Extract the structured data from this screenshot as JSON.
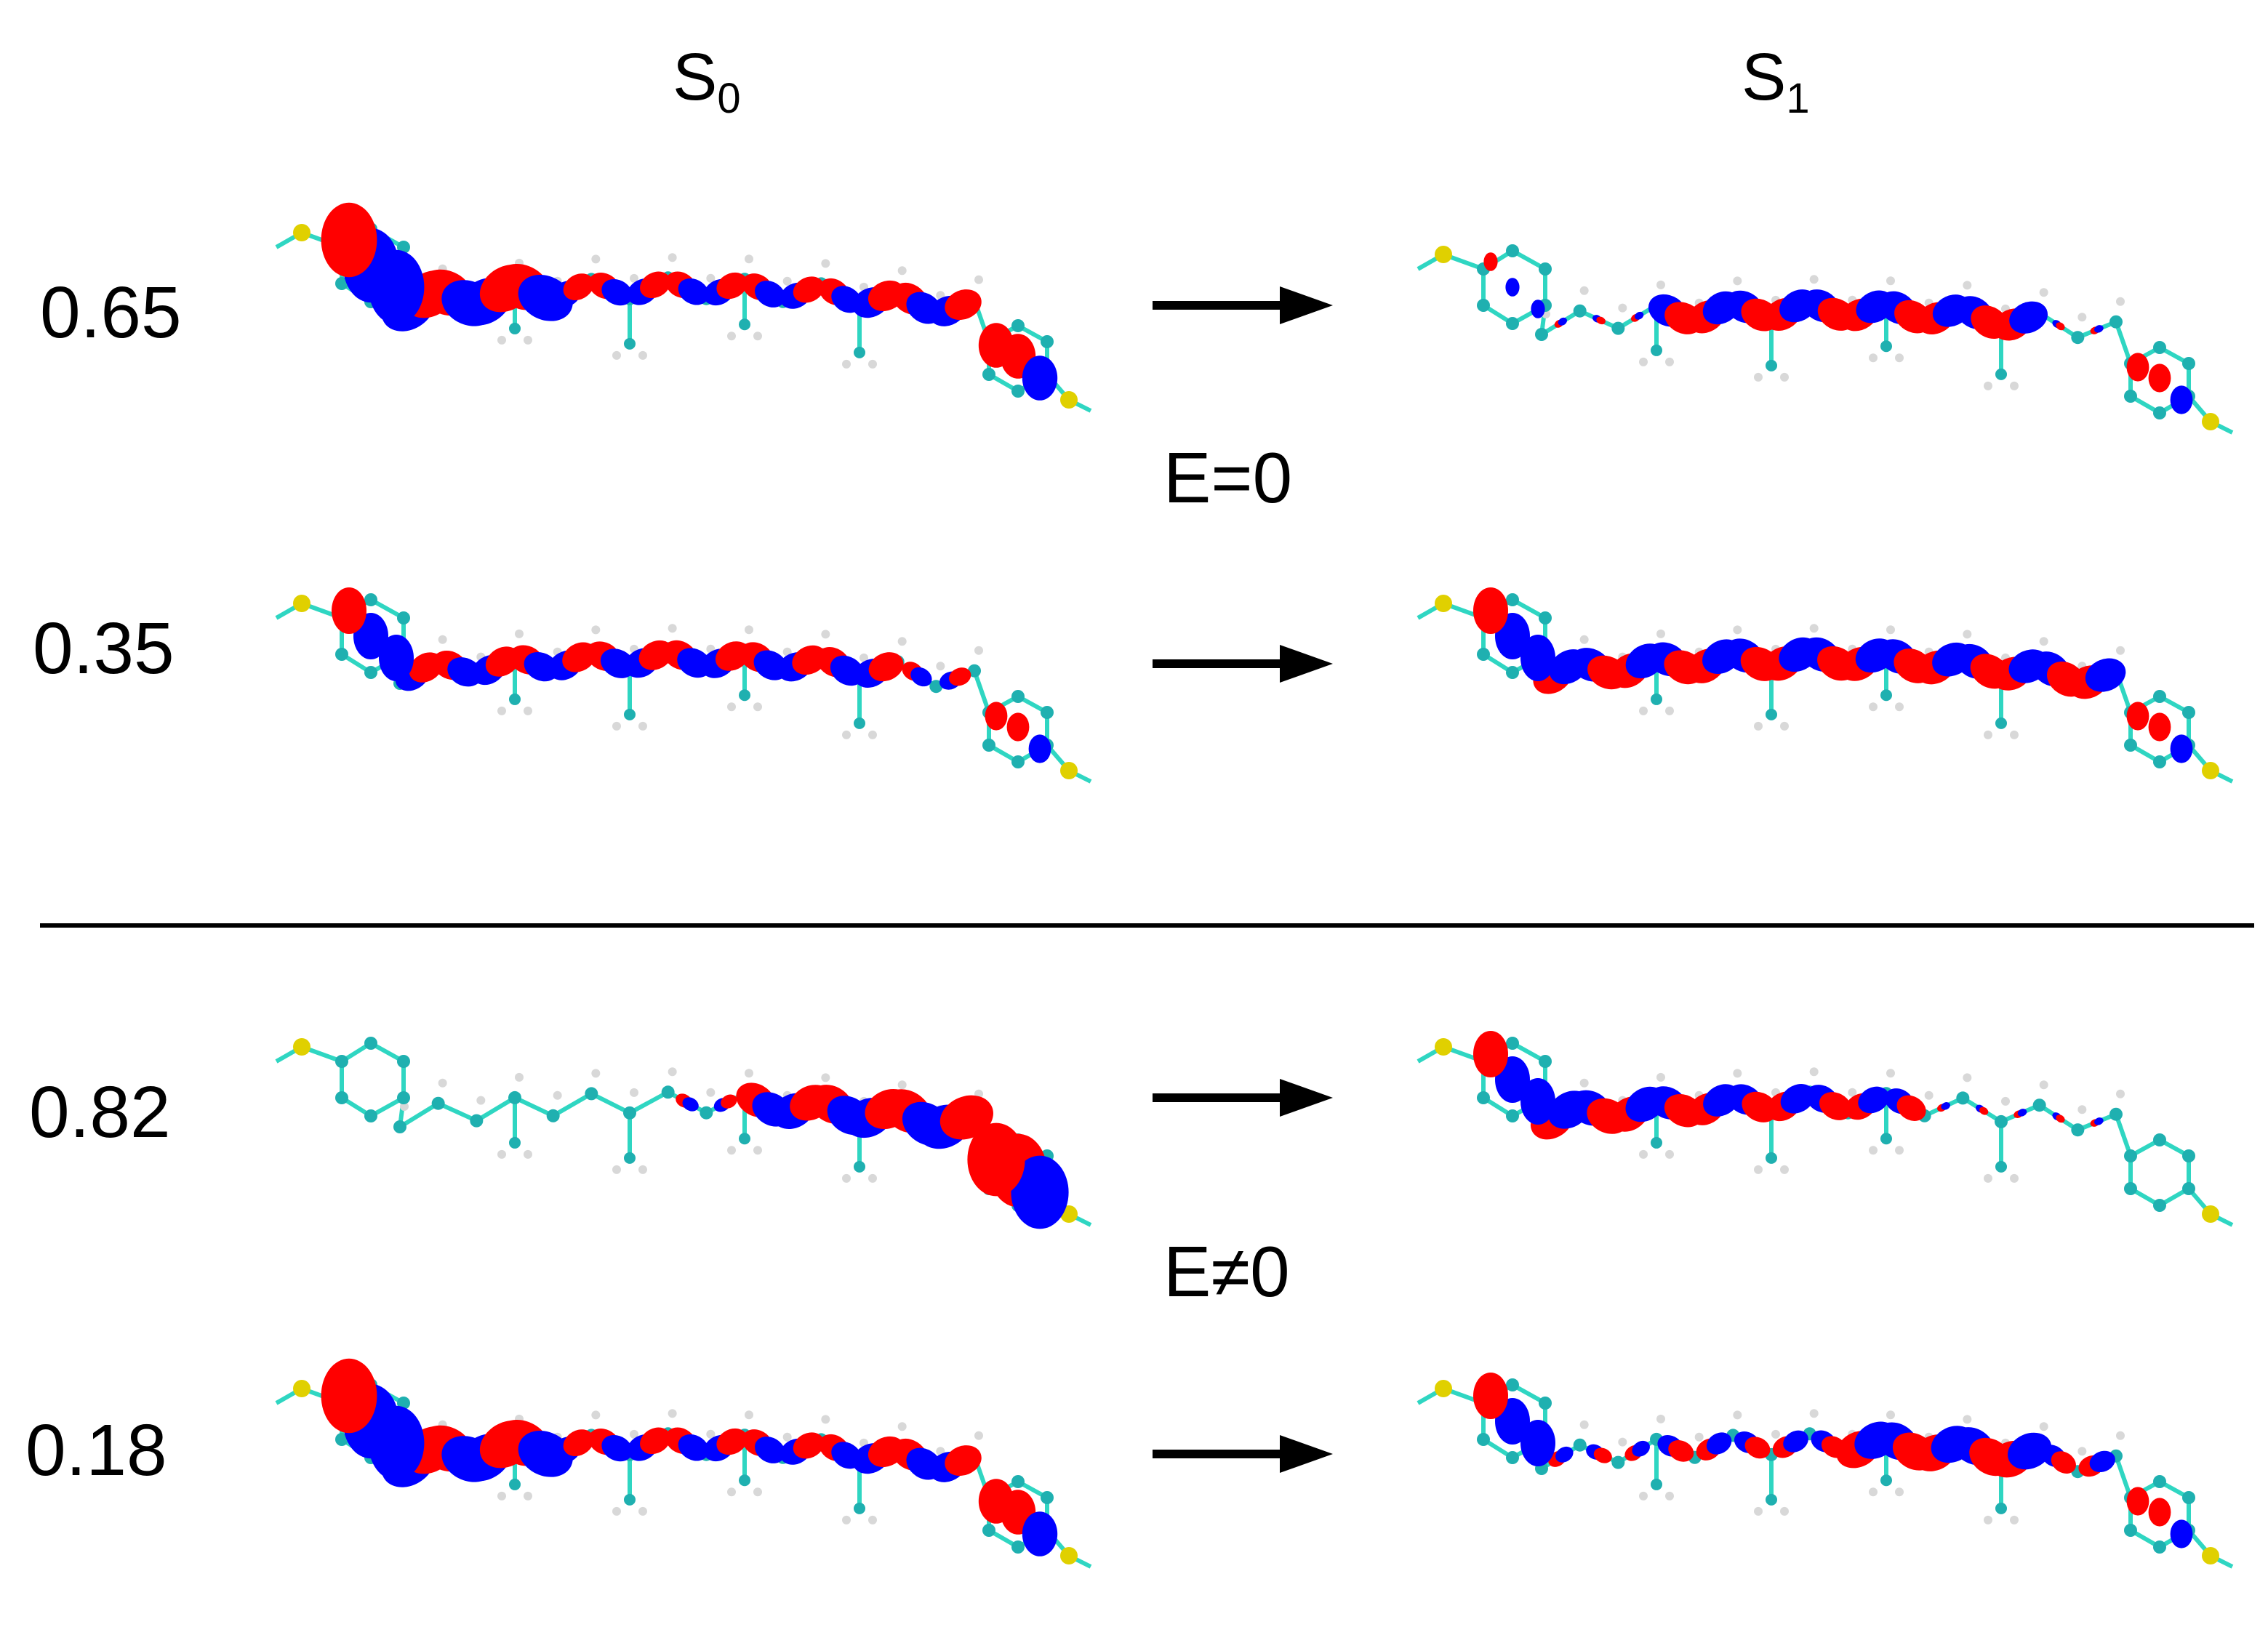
{
  "columns": {
    "left": {
      "base": "S",
      "sub": "0"
    },
    "right": {
      "base": "S",
      "sub": "1"
    }
  },
  "fields": {
    "top": "E=0",
    "bottom": "E≠0"
  },
  "weights": [
    "0.65",
    "0.35",
    "0.82",
    "0.18"
  ],
  "colors": {
    "lobe_positive": "#ff0000",
    "lobe_negative": "#0000ff",
    "bond": "#2fd6c2",
    "carbon": "#1fb0b0",
    "hydrogen": "#d8d8d8",
    "sulfur": "#e0d000",
    "arrow": "#000000"
  },
  "orbitals": [
    {
      "state": "S0",
      "weight": "0.65",
      "mode": "left-heavy"
    },
    {
      "state": "S1",
      "weight": "0.65",
      "mode": "center"
    },
    {
      "state": "S0",
      "weight": "0.35",
      "mode": "left"
    },
    {
      "state": "S1",
      "weight": "0.35",
      "mode": "full"
    },
    {
      "state": "S0",
      "weight": "0.82",
      "mode": "right"
    },
    {
      "state": "S1",
      "weight": "0.82",
      "mode": "left-center"
    },
    {
      "state": "S0",
      "weight": "0.18",
      "mode": "left-heavy"
    },
    {
      "state": "S1",
      "weight": "0.18",
      "mode": "right-center"
    }
  ]
}
